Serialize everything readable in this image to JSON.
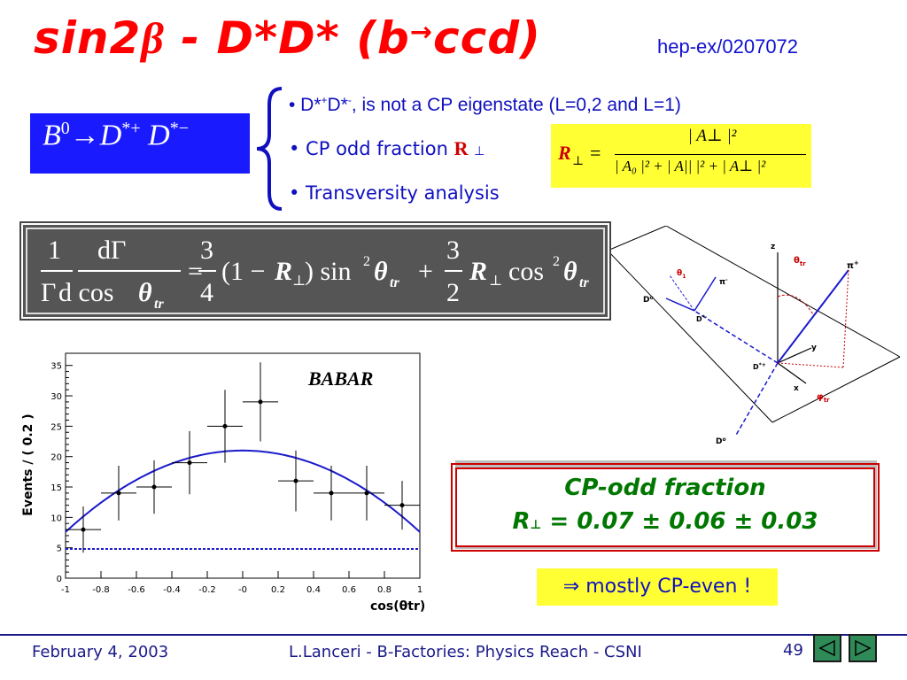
{
  "title": {
    "main": "sin2",
    "beta": "β",
    "mid": " - D*D* (b",
    "arrow": "→",
    "end": "ccd)"
  },
  "reference": "hep-ex/0207072",
  "decay": {
    "text": "B",
    "sup0": "0",
    "arrow": "→",
    "d1": "D",
    "sup1": "*+",
    "d2": " D",
    "sup2": "*−"
  },
  "bullets": {
    "b1_pre": "• D*",
    "b1_sup1": "+",
    "b1_mid": "D*",
    "b1_sup2": "-",
    "b1_post": ", is not a CP eigenstate (L=0,2 and L=1)",
    "b2_pre": "• CP odd fraction ",
    "b2_r": "R",
    "b2_perp": "⊥",
    "b3": "• Transversity analysis"
  },
  "rformula": {
    "lhs": "R",
    "perp": "⊥",
    "eq": "=",
    "num": "| A⊥ |²",
    "den": "| A₀ |² + | A|| |² + | A⊥ |²"
  },
  "angular": {
    "one": "1",
    "gamma": "Γ",
    "dgamma": "dΓ",
    "dcos": "d  cos",
    "theta": "θ",
    "tr": "tr",
    "eq": "=",
    "three": "3",
    "four": "4",
    "two": "2",
    "plus": "+",
    "term1": "(1 − ",
    "R": "R",
    "perp": "⊥",
    "sin": ") sin",
    "cos": "cos",
    "sq": "2"
  },
  "diagram_labels": {
    "z": "z",
    "y": "y",
    "x": "x",
    "theta_tr": "θ",
    "theta_tr_sub": "tr",
    "pi_plus": "π",
    "pi_plus_sup": "+",
    "theta1": "θ",
    "theta1_sub": "1",
    "pi_minus": "π",
    "pi_minus_sup": "-",
    "d0_top": "D",
    "d0_top_sup": "o",
    "dstar_minus": "D",
    "dstar_minus_sup": "*-",
    "dstar_plus": "D",
    "dstar_plus_sup": "*+",
    "phi_tr": "φ",
    "phi_tr_sub": "tr",
    "d0_bottom": "D",
    "d0_bottom_sup": "o"
  },
  "chart_data": {
    "type": "scatter",
    "title": "",
    "watermark": "BABAR",
    "xlabel": "cos(θtr)",
    "ylabel": "Events / ( 0.2 )",
    "xlim": [
      -1,
      1
    ],
    "ylim": [
      0,
      37
    ],
    "x_ticks": [
      "-1",
      "-0.8",
      "-0.6",
      "-0.4",
      "-0.2",
      "-0",
      "0.2",
      "0.4",
      "0.6",
      "0.8",
      "1"
    ],
    "y_ticks": [
      "0",
      "5",
      "10",
      "15",
      "20",
      "25",
      "30",
      "35"
    ],
    "points": [
      {
        "x": -0.9,
        "y": 8,
        "err": 3.8
      },
      {
        "x": -0.7,
        "y": 14,
        "err": 4.5
      },
      {
        "x": -0.5,
        "y": 15,
        "err": 4.4
      },
      {
        "x": -0.3,
        "y": 19,
        "err": 5.2
      },
      {
        "x": -0.1,
        "y": 25,
        "err": 6.0
      },
      {
        "x": 0.1,
        "y": 29,
        "err": 6.5
      },
      {
        "x": 0.3,
        "y": 16,
        "err": 5.0
      },
      {
        "x": 0.5,
        "y": 14,
        "err": 4.5
      },
      {
        "x": 0.7,
        "y": 14,
        "err": 4.5
      },
      {
        "x": 0.9,
        "y": 12,
        "err": 4.0
      }
    ],
    "fit_curve": {
      "peak": 21,
      "edge": 7.6
    },
    "background_level": 4.8,
    "colors": {
      "fit": "#1a1acc",
      "points": "#000000"
    }
  },
  "result": {
    "line1": "CP-odd fraction",
    "line2_r": "R",
    "line2_perp": "⊥",
    "line2": " = 0.07 ± 0.06 ± 0.03"
  },
  "conclusion": "⇒ mostly CP-even !",
  "footer": {
    "date": "February 4, 2003",
    "center": "L.Lanceri - B-Factories: Physics Reach - CSNI",
    "page": "49"
  },
  "colors": {
    "title": "#ff0000",
    "text": "#1010c0",
    "box": "#1a1aff",
    "highlight": "#ffff33",
    "result": "#007700"
  }
}
